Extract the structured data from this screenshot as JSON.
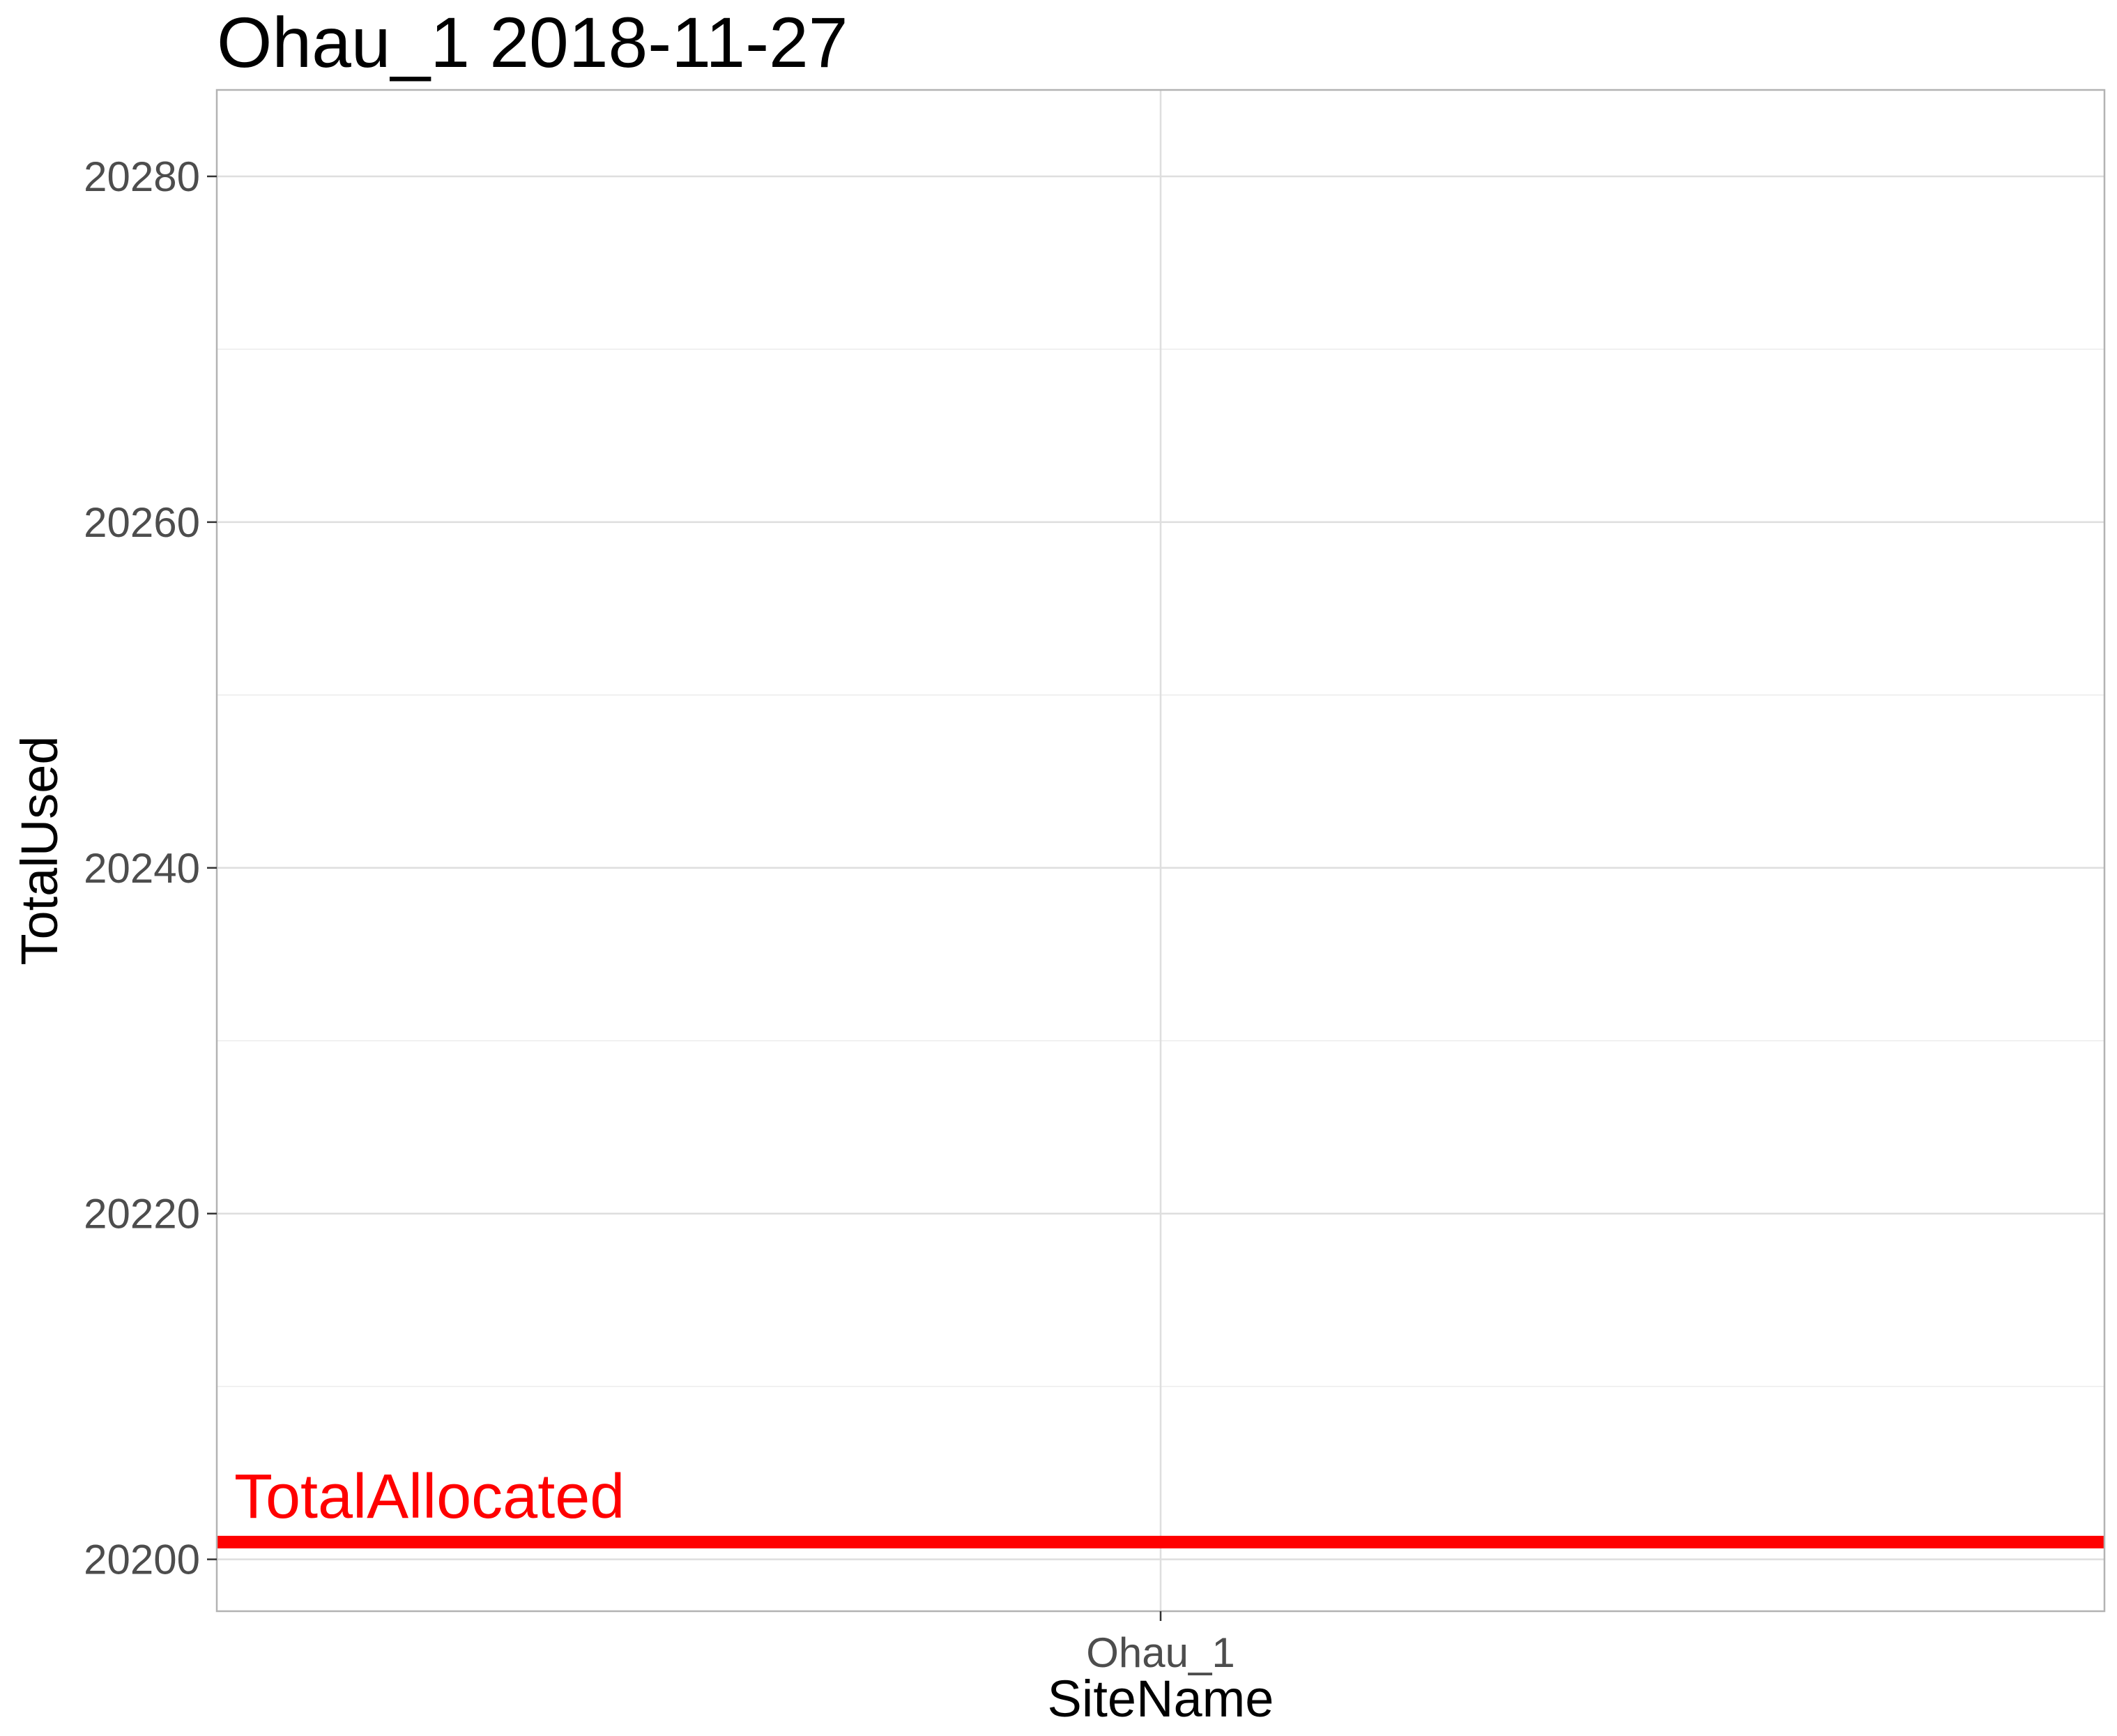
{
  "chart_data": {
    "type": "line",
    "title": "Ohau_1 2018-11-27",
    "xlabel": "SiteName",
    "ylabel": "TotalUsed",
    "categories": [
      "Ohau_1"
    ],
    "ylim": [
      20197,
      20285
    ],
    "y_ticks": [
      20200,
      20220,
      20240,
      20260,
      20280
    ],
    "y_tick_labels": [
      "20200",
      "20220",
      "20240",
      "20260",
      "20280"
    ],
    "y_minor_ticks": [
      20210,
      20230,
      20250,
      20270
    ],
    "grid": true,
    "legend": "none",
    "reference_line": {
      "label": "TotalAllocated",
      "value": 20201,
      "color": "#ff0000"
    },
    "series": []
  }
}
